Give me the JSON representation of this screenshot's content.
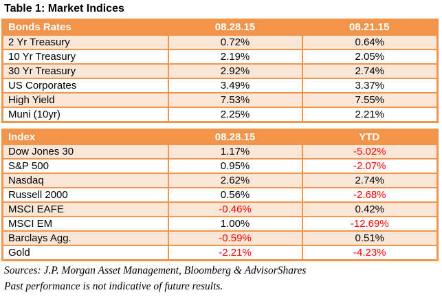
{
  "title": "Table 1: Market Indices",
  "colors": {
    "orange": "#F2944A",
    "peach": "#FAE6D6",
    "negative": "#FF0000",
    "header_text": "#FFFFFF"
  },
  "tables": [
    {
      "headers": [
        "Bonds Rates",
        "08.28.15",
        "08.21.15"
      ],
      "rows": [
        {
          "label": "2 Yr Treasury",
          "values": [
            "0.72%",
            "0.64%"
          ]
        },
        {
          "label": "10 Yr Treasury",
          "values": [
            "2.19%",
            "2.05%"
          ]
        },
        {
          "label": "30 Yr Treasury",
          "values": [
            "2.92%",
            "2.74%"
          ]
        },
        {
          "label": "US Corporates",
          "values": [
            "3.49%",
            "3.37%"
          ]
        },
        {
          "label": "High Yield",
          "values": [
            "7.53%",
            "7.55%"
          ]
        },
        {
          "label": "Muni (10yr)",
          "values": [
            "2.25%",
            "2.21%"
          ]
        }
      ]
    },
    {
      "headers": [
        "Index",
        "08.28.15",
        "YTD"
      ],
      "rows": [
        {
          "label": "Dow Jones 30",
          "values": [
            "1.17%",
            "-5.02%"
          ]
        },
        {
          "label": "S&P 500",
          "values": [
            "0.95%",
            "-2.07%"
          ]
        },
        {
          "label": "Nasdaq",
          "values": [
            "2.62%",
            "2.74%"
          ]
        },
        {
          "label": "Russell 2000",
          "values": [
            "0.56%",
            "-2.68%"
          ]
        },
        {
          "label": "MSCI EAFE",
          "values": [
            "-0.46%",
            "0.42%"
          ]
        },
        {
          "label": "MSCI EM",
          "values": [
            "1.00%",
            "-12.69%"
          ]
        },
        {
          "label": "Barclays Agg.",
          "values": [
            "-0.59%",
            "0.51%"
          ]
        },
        {
          "label": "Gold",
          "values": [
            "-2.21%",
            "-4.23%"
          ]
        }
      ]
    }
  ],
  "footer": {
    "sources": "Sources: J.P. Morgan Asset Management, Bloomberg & AdvisorShares",
    "disclaimer": "Past performance is not indicative of future results."
  }
}
